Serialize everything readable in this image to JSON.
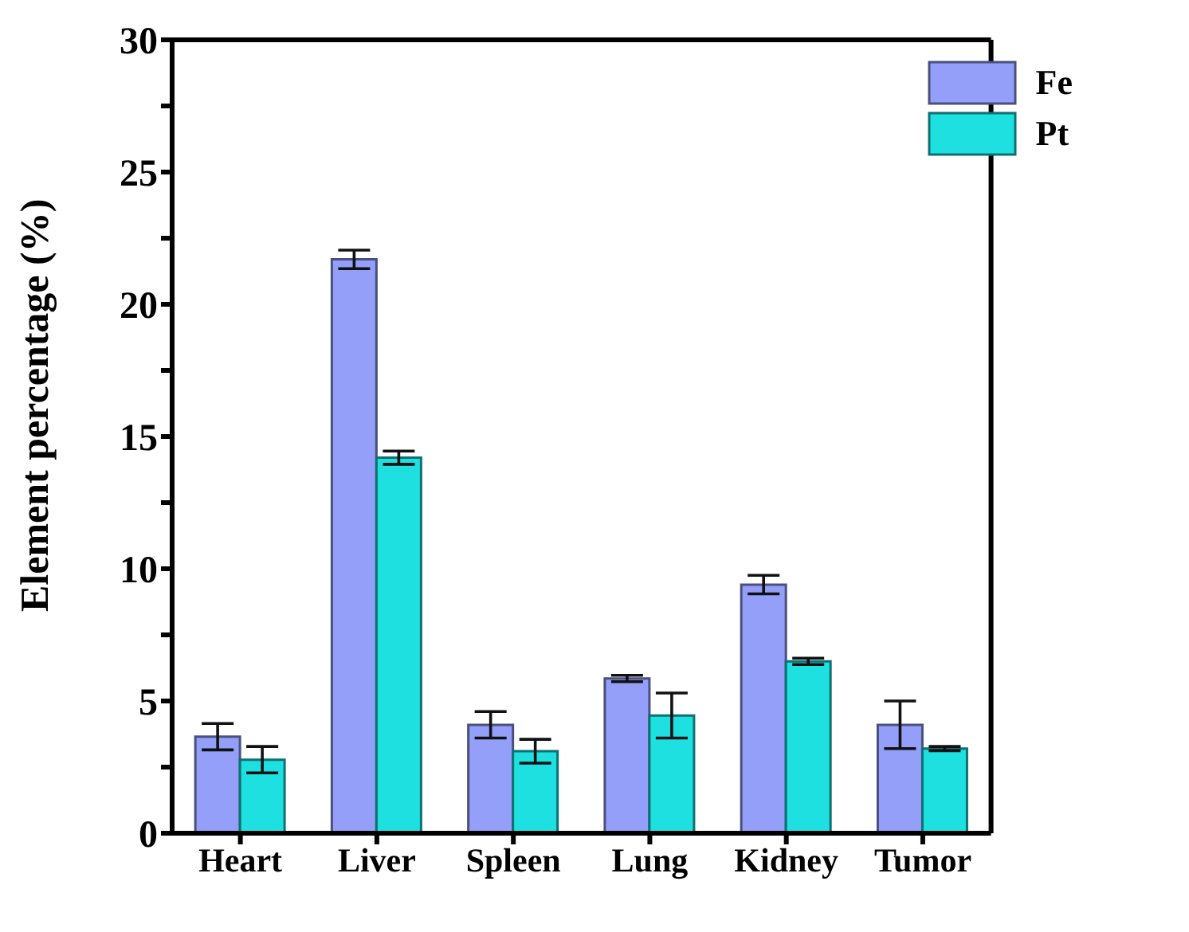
{
  "chart_data": {
    "type": "bar",
    "ylabel": "Element percentage (%)",
    "categories": [
      "Heart",
      "Liver",
      "Spleen",
      "Lung",
      "Kidney",
      "Tumor"
    ],
    "series": [
      {
        "name": "Fe",
        "color": "#939ff9",
        "values": [
          3.65,
          21.7,
          4.1,
          5.85,
          9.4,
          4.1
        ],
        "errors": [
          0.5,
          0.35,
          0.5,
          0.12,
          0.35,
          0.9
        ]
      },
      {
        "name": "Pt",
        "color": "#1ee0e0",
        "values": [
          2.78,
          14.2,
          3.1,
          4.45,
          6.5,
          3.2
        ],
        "errors": [
          0.5,
          0.25,
          0.45,
          0.85,
          0.12,
          0.08
        ]
      }
    ],
    "ylim": [
      0,
      30
    ],
    "yticks": [
      0,
      {
        "value": 2.5,
        "label": null
      },
      5,
      {
        "value": 7.5,
        "label": null
      },
      10,
      {
        "value": 12.5,
        "label": null
      },
      15,
      {
        "value": 17.5,
        "label": null
      },
      20,
      {
        "value": 22.5,
        "label": null
      },
      25,
      {
        "value": 27.5,
        "label": null
      },
      30
    ],
    "grid": false,
    "legend": "top right"
  }
}
